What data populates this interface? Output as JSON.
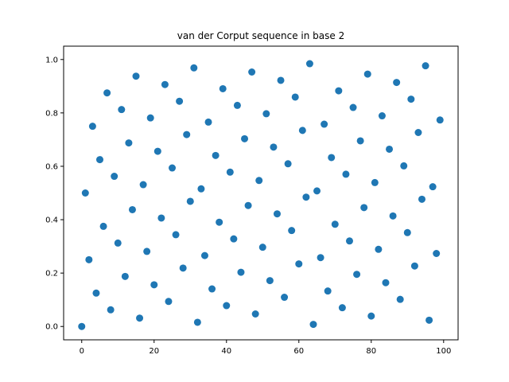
{
  "chart_data": {
    "type": "scatter",
    "title": "van der Corput sequence in base 2",
    "xlabel": "",
    "ylabel": "",
    "xlim": [
      -5,
      104
    ],
    "ylim": [
      -0.05,
      1.05
    ],
    "xticks": [
      0,
      20,
      40,
      60,
      80,
      100
    ],
    "xtick_labels": [
      "0",
      "20",
      "40",
      "60",
      "80",
      "100"
    ],
    "yticks": [
      0.0,
      0.2,
      0.4,
      0.6,
      0.8,
      1.0
    ],
    "ytick_labels": [
      "0.0",
      "0.2",
      "0.4",
      "0.6",
      "0.8",
      "1.0"
    ],
    "grid": false,
    "marker_color": "#1f77b4",
    "x": [
      0,
      1,
      2,
      3,
      4,
      5,
      6,
      7,
      8,
      9,
      10,
      11,
      12,
      13,
      14,
      15,
      16,
      17,
      18,
      19,
      20,
      21,
      22,
      23,
      24,
      25,
      26,
      27,
      28,
      29,
      30,
      31,
      32,
      33,
      34,
      35,
      36,
      37,
      38,
      39,
      40,
      41,
      42,
      43,
      44,
      45,
      46,
      47,
      48,
      49,
      50,
      51,
      52,
      53,
      54,
      55,
      56,
      57,
      58,
      59,
      60,
      61,
      62,
      63,
      64,
      65,
      66,
      67,
      68,
      69,
      70,
      71,
      72,
      73,
      74,
      75,
      76,
      77,
      78,
      79,
      80,
      81,
      82,
      83,
      84,
      85,
      86,
      87,
      88,
      89,
      90,
      91,
      92,
      93,
      94,
      95,
      96,
      97,
      98,
      99
    ],
    "y": [
      0,
      0.5,
      0.25,
      0.75,
      0.125,
      0.625,
      0.375,
      0.875,
      0.0625,
      0.5625,
      0.3125,
      0.8125,
      0.1875,
      0.6875,
      0.4375,
      0.9375,
      0.03125,
      0.53125,
      0.28125,
      0.78125,
      0.15625,
      0.65625,
      0.40625,
      0.90625,
      0.09375,
      0.59375,
      0.34375,
      0.84375,
      0.21875,
      0.71875,
      0.46875,
      0.96875,
      0.015625,
      0.515625,
      0.265625,
      0.765625,
      0.140625,
      0.640625,
      0.390625,
      0.890625,
      0.078125,
      0.578125,
      0.328125,
      0.828125,
      0.203125,
      0.703125,
      0.453125,
      0.953125,
      0.046875,
      0.546875,
      0.296875,
      0.796875,
      0.171875,
      0.671875,
      0.421875,
      0.921875,
      0.109375,
      0.609375,
      0.359375,
      0.859375,
      0.234375,
      0.734375,
      0.484375,
      0.984375,
      0.0078125,
      0.5078125,
      0.2578125,
      0.7578125,
      0.1328125,
      0.6328125,
      0.3828125,
      0.8828125,
      0.0703125,
      0.5703125,
      0.3203125,
      0.8203125,
      0.1953125,
      0.6953125,
      0.4453125,
      0.9453125,
      0.0390625,
      0.5390625,
      0.2890625,
      0.7890625,
      0.1640625,
      0.6640625,
      0.4140625,
      0.9140625,
      0.1015625,
      0.6015625,
      0.3515625,
      0.8515625,
      0.2265625,
      0.7265625,
      0.4765625,
      0.9765625,
      0.0234375,
      0.5234375,
      0.2734375,
      0.7734375
    ]
  }
}
